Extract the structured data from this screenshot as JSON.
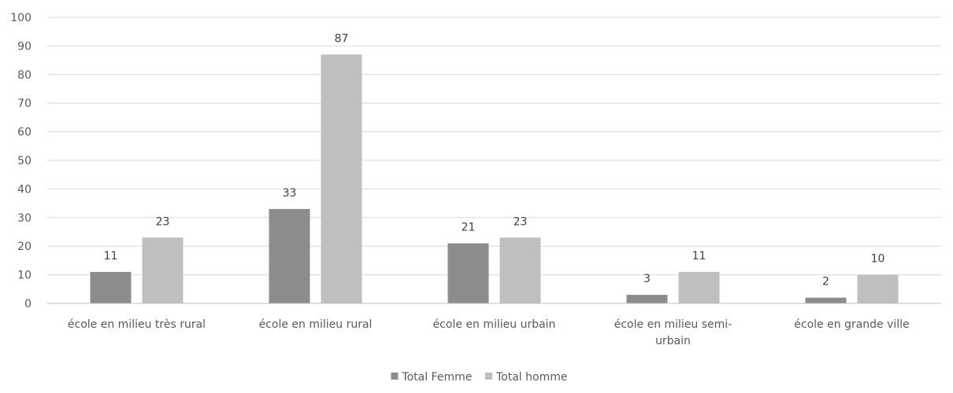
{
  "chart_data": {
    "type": "bar",
    "categories": [
      [
        "école en milieu très rural"
      ],
      [
        "école en milieu rural"
      ],
      [
        "école en milieu urbain"
      ],
      [
        "école en milieu semi-",
        "urbain"
      ],
      [
        "école en grande ville"
      ]
    ],
    "series": [
      {
        "name": "Total Femme",
        "color": "#8c8c8c",
        "values": [
          11,
          33,
          21,
          3,
          2
        ]
      },
      {
        "name": "Total homme",
        "color": "#bfbfbf",
        "values": [
          23,
          87,
          23,
          11,
          10
        ]
      }
    ],
    "ylim": [
      0,
      100
    ],
    "yticks": [
      0,
      10,
      20,
      30,
      40,
      50,
      60,
      70,
      80,
      90,
      100
    ],
    "grid": true,
    "legend_position": "bottom"
  }
}
